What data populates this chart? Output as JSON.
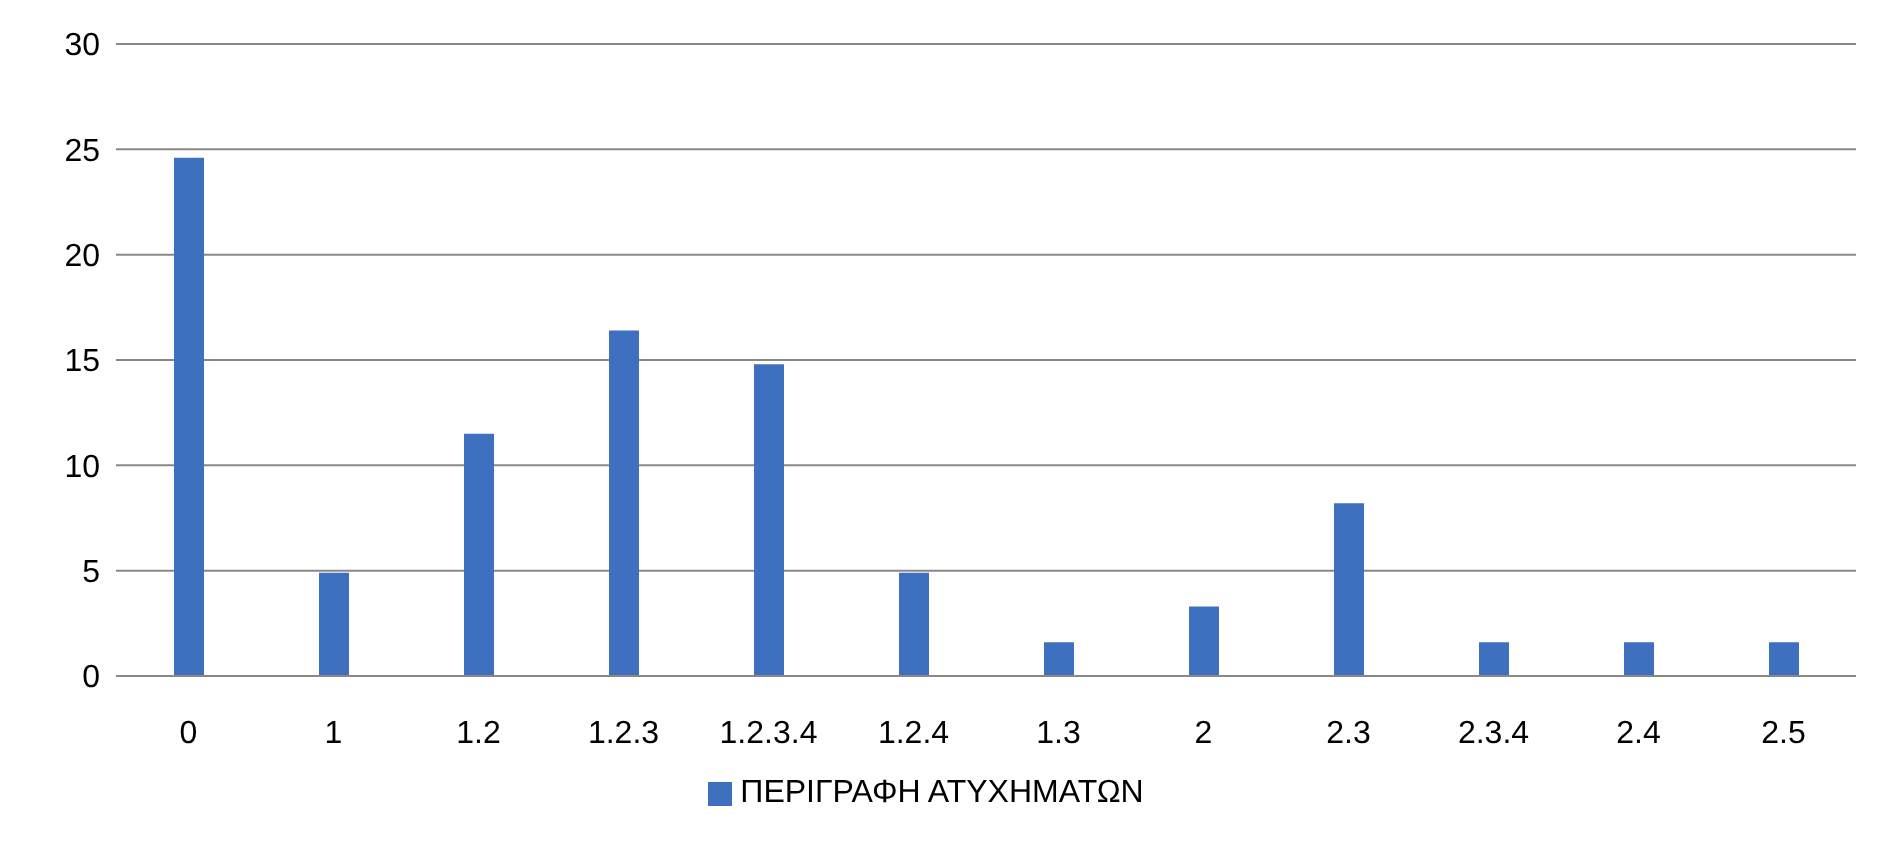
{
  "chart_data": {
    "type": "bar",
    "categories": [
      "0",
      "1",
      "1.2",
      "1.2.3",
      "1.2.3.4",
      "1.2.4",
      "1.3",
      "2",
      "2.3",
      "2.3.4",
      "2.4",
      "2.5"
    ],
    "series": [
      {
        "name": "ΠΕΡΙΓΡΑΦΗ ΑΤΥΧΗΜΑΤΩΝ",
        "color": "#3f6fbf",
        "values": [
          24.6,
          4.9,
          11.5,
          16.4,
          14.8,
          4.9,
          1.6,
          3.3,
          8.2,
          1.6,
          1.6,
          1.6
        ]
      }
    ],
    "ylim": [
      0,
      30
    ],
    "yticks": [
      0,
      5,
      10,
      15,
      20,
      25,
      30
    ],
    "grid": "y",
    "legend": "bottom"
  }
}
